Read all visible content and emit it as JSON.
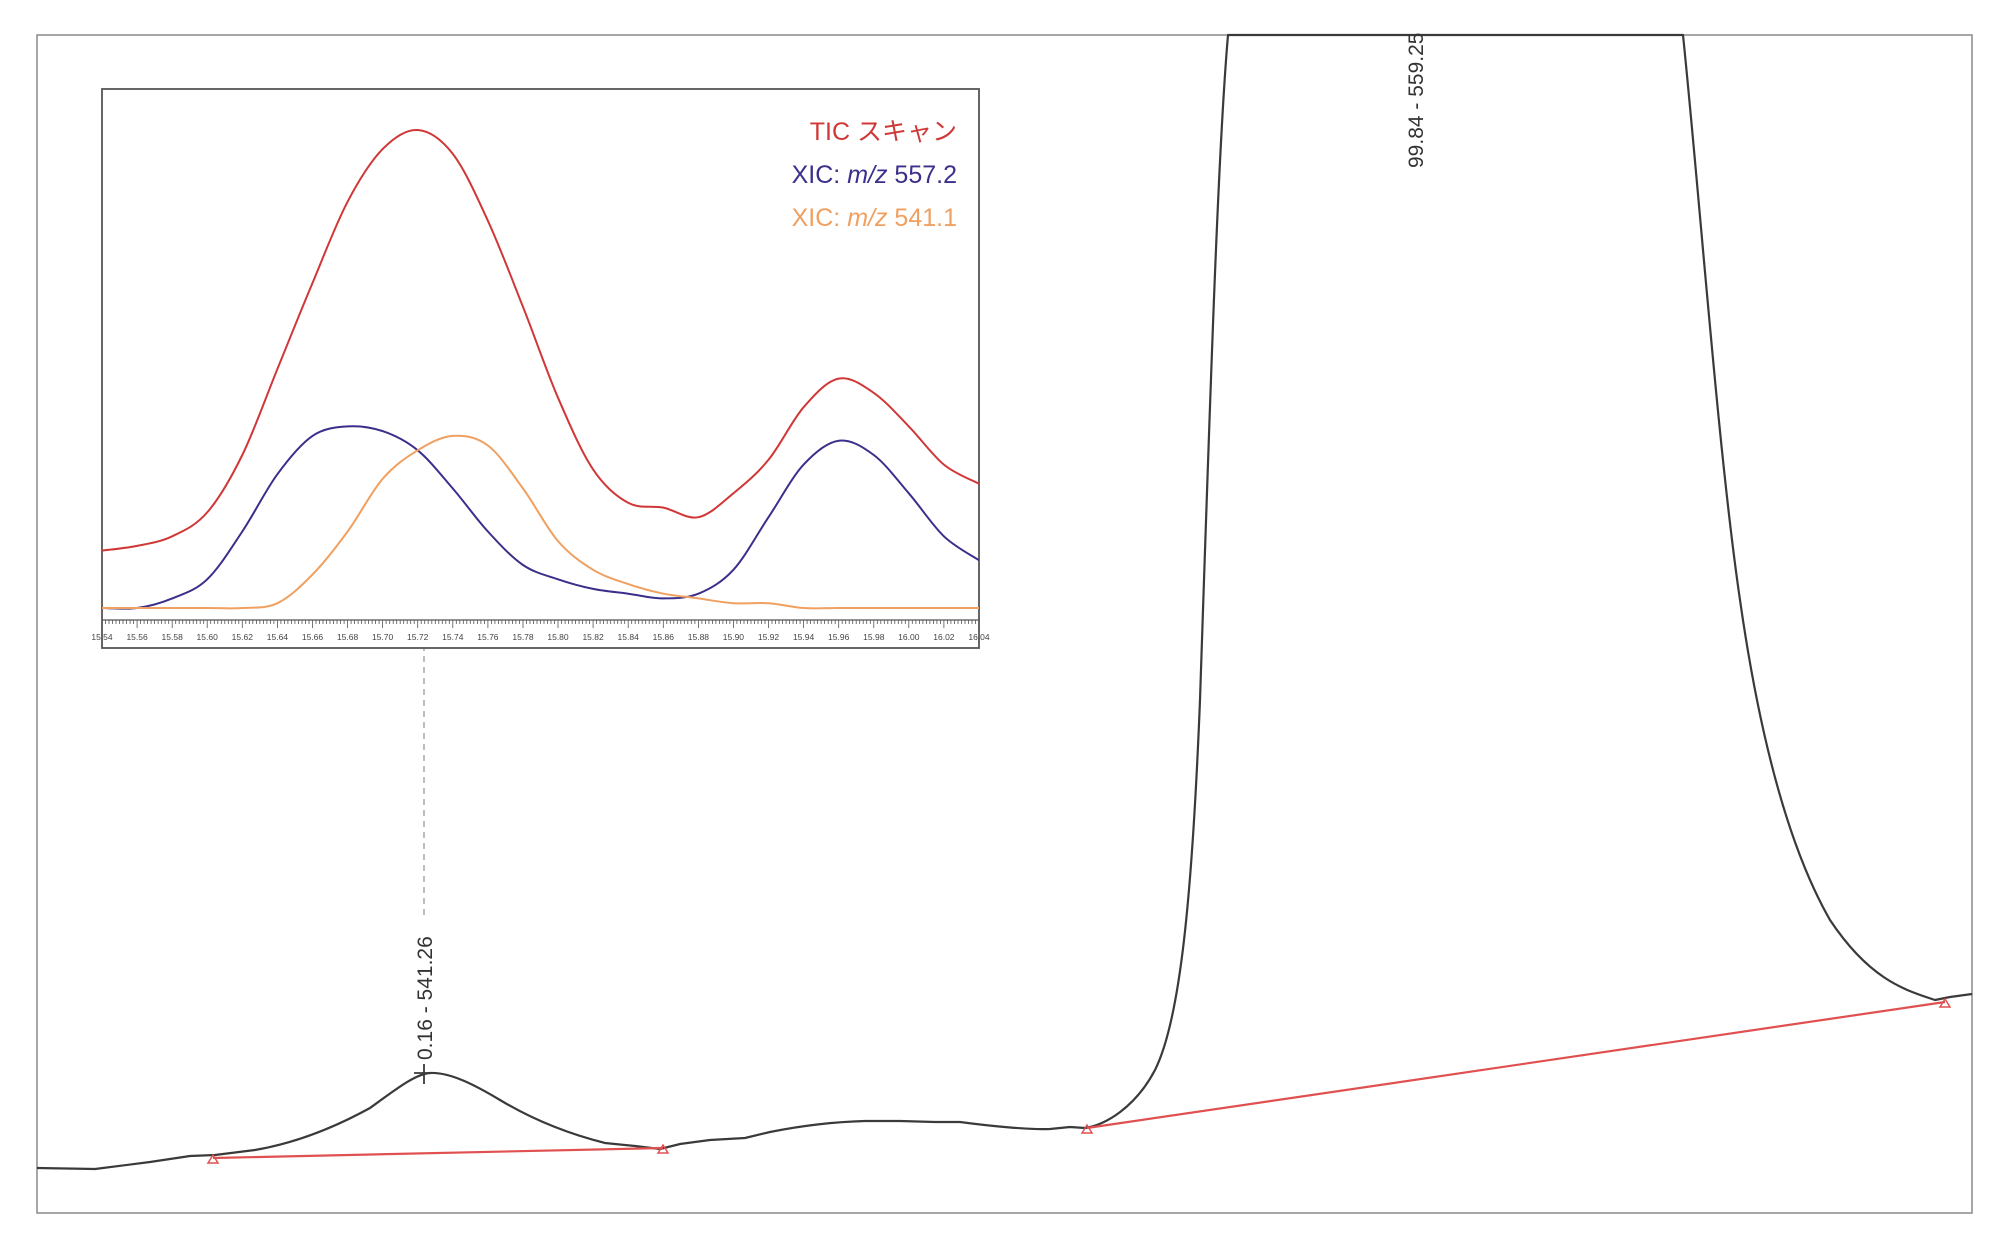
{
  "main_chart": {
    "peak_labels": {
      "small_peak": "0.16 - 541.26",
      "large_peak": "99.84 - 559.25"
    },
    "colors": {
      "trace": "#3a3a3a",
      "baseline": "#e05050",
      "frame": "#8a8a8a"
    }
  },
  "chart_data": {
    "type": "line",
    "x_tick_labels": [
      "15.54",
      "15.56",
      "15.58",
      "15.60",
      "15.62",
      "15.64",
      "15.66",
      "15.68",
      "15.70",
      "15.72",
      "15.74",
      "15.76",
      "15.78",
      "15.80",
      "15.82",
      "15.84",
      "15.86",
      "15.88",
      "15.90",
      "15.92",
      "15.94",
      "15.96",
      "15.98",
      "16.00",
      "16.02",
      "16.04"
    ],
    "xlim": [
      15.54,
      16.04
    ],
    "ylim": [
      0,
      100
    ],
    "grid": false,
    "legend_position": "top-right",
    "marker_x": 15.72,
    "series": [
      {
        "name": "TIC スキャン",
        "color": "#d03838",
        "x": [
          15.54,
          15.56,
          15.58,
          15.6,
          15.62,
          15.64,
          15.66,
          15.68,
          15.7,
          15.72,
          15.74,
          15.76,
          15.78,
          15.8,
          15.82,
          15.84,
          15.86,
          15.88,
          15.9,
          15.92,
          15.94,
          15.96,
          15.98,
          16.0,
          16.02,
          16.04
        ],
        "y": [
          12,
          13,
          15,
          20,
          32,
          50,
          68,
          85,
          96,
          100,
          95,
          81,
          63,
          44,
          29,
          22,
          21,
          19,
          24,
          31,
          42,
          48,
          45,
          38,
          30,
          26
        ]
      },
      {
        "name": "XIC: m/z 557.2",
        "color": "#3a2f8a",
        "x": [
          15.54,
          15.56,
          15.58,
          15.6,
          15.62,
          15.64,
          15.66,
          15.68,
          15.7,
          15.72,
          15.74,
          15.76,
          15.78,
          15.8,
          15.82,
          15.84,
          15.86,
          15.88,
          15.9,
          15.92,
          15.94,
          15.96,
          15.98,
          16.0,
          16.02,
          16.04
        ],
        "y": [
          0,
          0,
          2,
          6,
          16,
          28,
          36,
          38,
          37,
          33,
          25,
          16,
          9,
          6,
          4,
          3,
          2,
          3,
          8,
          19,
          30,
          35,
          32,
          24,
          15,
          10
        ]
      },
      {
        "name": "XIC: m/z 541.1",
        "color": "#f0a060",
        "x": [
          15.54,
          15.56,
          15.58,
          15.6,
          15.62,
          15.64,
          15.66,
          15.68,
          15.7,
          15.72,
          15.74,
          15.76,
          15.78,
          15.8,
          15.82,
          15.84,
          15.86,
          15.88,
          15.9,
          15.92,
          15.94,
          15.96,
          15.98,
          16.0,
          16.02,
          16.04
        ],
        "y": [
          0,
          0,
          0,
          0,
          0,
          1,
          7,
          16,
          27,
          33,
          36,
          34,
          25,
          14,
          8,
          5,
          3,
          2,
          1,
          1,
          0,
          0,
          0,
          0,
          0,
          0
        ]
      }
    ]
  }
}
